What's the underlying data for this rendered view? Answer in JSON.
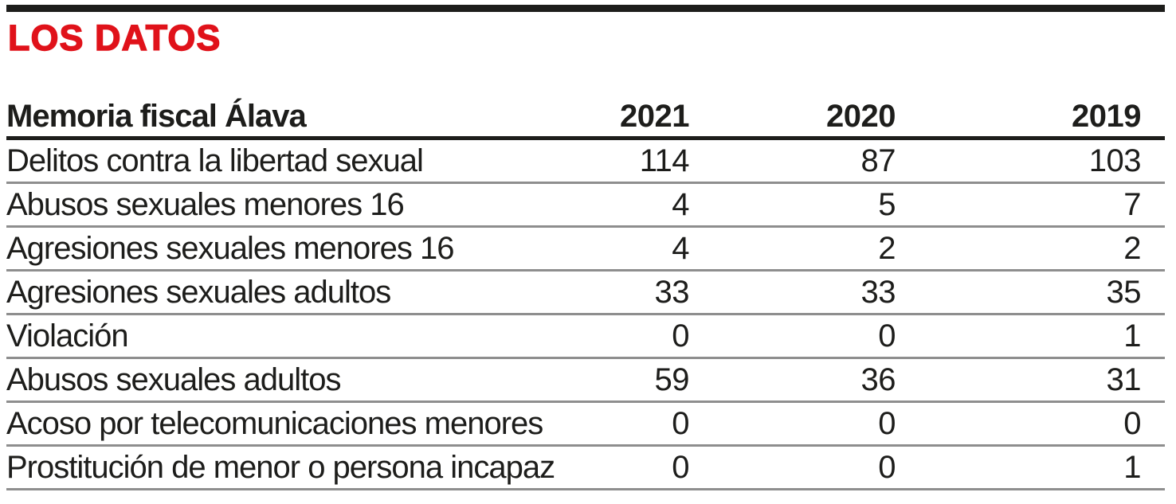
{
  "colors": {
    "accent_red": "#e0121a",
    "rule_black": "#1d1d1b",
    "row_divider_gray": "#8e8e8e",
    "text": "#1d1d1b",
    "background": "#ffffff"
  },
  "header": {
    "title": "LOS DATOS"
  },
  "chart_data": {
    "type": "table",
    "title": "LOS DATOS",
    "columns": [
      "Memoria fiscal Álava",
      "2021",
      "2020",
      "2019"
    ],
    "rows": [
      [
        "Delitos contra la libertad sexual",
        114,
        87,
        103
      ],
      [
        "Abusos sexuales menores 16",
        4,
        5,
        7
      ],
      [
        "Agresiones sexuales menores 16",
        4,
        2,
        2
      ],
      [
        "Agresiones sexuales adultos",
        33,
        33,
        35
      ],
      [
        "Violación",
        0,
        0,
        1
      ],
      [
        "Abusos sexuales adultos",
        59,
        36,
        31
      ],
      [
        "Acoso por telecomunicaciones menores",
        0,
        0,
        0
      ],
      [
        "Prostitución de menor o persona incapaz",
        0,
        0,
        1
      ]
    ],
    "layout": {
      "value_alignment": "right",
      "header_divider": "thick-black",
      "row_divider": "thin-gray",
      "grid": "horizontal-rules-only"
    }
  }
}
